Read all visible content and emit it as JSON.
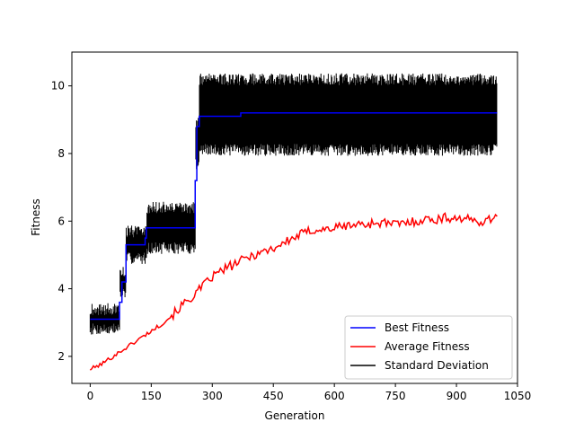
{
  "chart_data": {
    "type": "line",
    "title": "",
    "xlabel": "Generation",
    "ylabel": "Fitness",
    "xlim": [
      -45,
      1050
    ],
    "ylim": [
      1.2,
      11.0
    ],
    "xticks": [
      0,
      150,
      300,
      450,
      600,
      750,
      900,
      1050
    ],
    "yticks": [
      2,
      4,
      6,
      8,
      10
    ],
    "grid": false,
    "legend_position": "lower-right",
    "series": [
      {
        "name": "Best Fitness",
        "color": "#0000ff",
        "x": [
          0,
          72,
          72,
          78,
          78,
          88,
          88,
          135,
          135,
          138,
          138,
          258,
          258,
          262,
          262,
          268,
          268,
          370,
          370,
          1000
        ],
        "y": [
          3.1,
          3.1,
          3.6,
          3.6,
          4.2,
          4.2,
          5.3,
          5.3,
          5.5,
          5.5,
          5.8,
          5.8,
          7.2,
          7.2,
          8.8,
          8.8,
          9.1,
          9.1,
          9.2,
          9.2
        ]
      },
      {
        "name": "Average Fitness",
        "color": "#ff0000",
        "x": [
          0,
          25,
          50,
          75,
          100,
          125,
          150,
          175,
          200,
          225,
          250,
          275,
          300,
          325,
          350,
          375,
          400,
          425,
          450,
          475,
          500,
          525,
          550,
          575,
          600,
          625,
          650,
          675,
          700,
          725,
          750,
          775,
          800,
          825,
          850,
          875,
          900,
          925,
          950,
          975,
          1000
        ],
        "y": [
          1.62,
          1.75,
          1.95,
          2.15,
          2.35,
          2.55,
          2.75,
          2.95,
          3.2,
          3.5,
          3.75,
          4.05,
          4.35,
          4.55,
          4.7,
          4.85,
          5.0,
          5.1,
          5.2,
          5.35,
          5.5,
          5.65,
          5.75,
          5.75,
          5.8,
          5.85,
          5.9,
          5.9,
          5.95,
          5.95,
          5.9,
          5.95,
          6.0,
          6.05,
          6.05,
          6.1,
          6.1,
          6.05,
          6.0,
          6.0,
          6.2
        ]
      },
      {
        "name": "Standard Deviation",
        "color": "#000000",
        "type": "band",
        "x": [
          0,
          72,
          72,
          88,
          88,
          138,
          138,
          258,
          258,
          268,
          268,
          1000
        ],
        "lower": [
          2.7,
          2.7,
          3.8,
          3.8,
          4.8,
          4.8,
          5.1,
          5.1,
          7.6,
          7.6,
          8.0,
          8.0
        ],
        "upper": [
          3.5,
          3.5,
          4.6,
          4.6,
          5.8,
          5.8,
          6.5,
          6.5,
          9.0,
          9.0,
          10.3,
          10.3
        ]
      }
    ]
  }
}
